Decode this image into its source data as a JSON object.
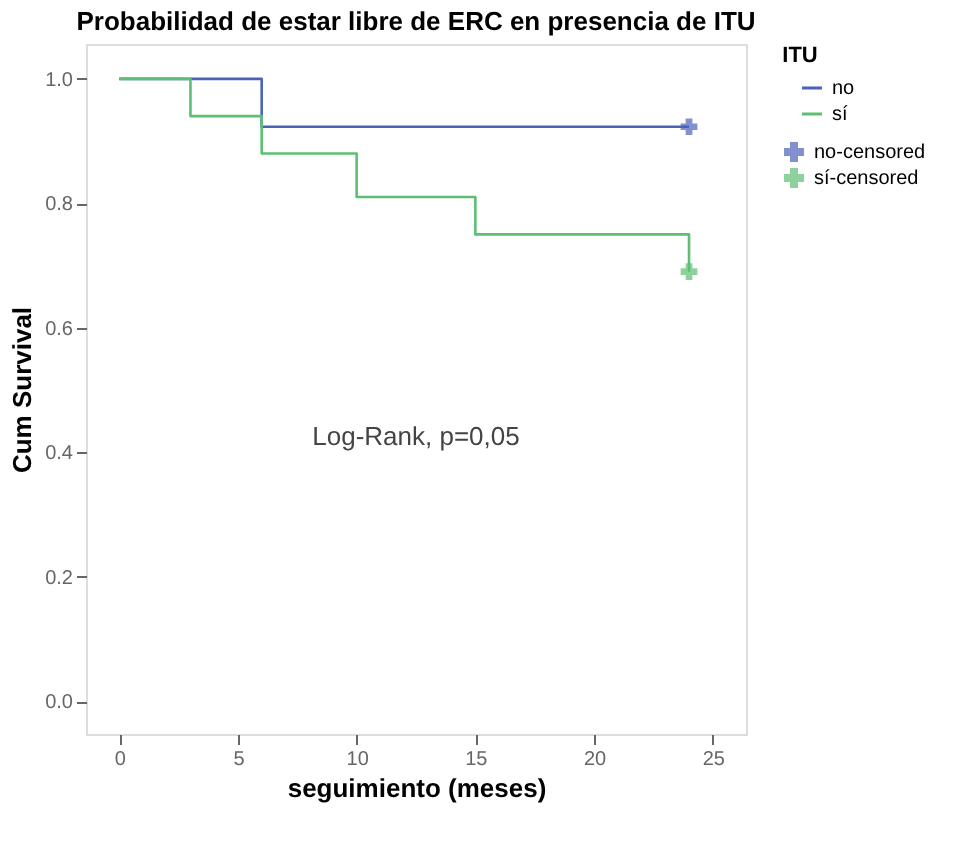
{
  "chart_data": {
    "type": "step",
    "title": "Probabilidad de estar libre de ERC en presencia de ITU",
    "xlabel": "seguimiento (meses)",
    "ylabel": "Cum Survival",
    "legend_title": "ITU",
    "legend": "top right",
    "grid": false,
    "xlim": [
      -1.4,
      26.4
    ],
    "xticks": [
      0,
      5,
      10,
      15,
      20,
      25
    ],
    "ylim": [
      -0.053,
      1.056
    ],
    "yticks": [
      {
        "value": 0,
        "label": "0.0"
      },
      {
        "value": 0.2,
        "label": "0.2"
      },
      {
        "value": 0.4,
        "label": "0.4"
      },
      {
        "value": 0.6,
        "label": "0.6"
      },
      {
        "value": 0.8,
        "label": "0.8"
      },
      {
        "value": 1,
        "label": "1.0"
      }
    ],
    "annotations": [
      "Log-Rank, p=0,05"
    ],
    "series": [
      {
        "name": "no",
        "type": "step",
        "color": "#4a63b8",
        "x": [
          0,
          6,
          24
        ],
        "values": [
          1,
          0.923,
          0.923
        ]
      },
      {
        "name": "sí",
        "type": "step",
        "color": "#5cbf72",
        "x": [
          0,
          3,
          6,
          10,
          15,
          24
        ],
        "values": [
          1,
          0.94,
          0.88,
          0.81,
          0.75,
          0.69
        ]
      },
      {
        "name": "no-censored",
        "type": "scatter",
        "marker": "cross",
        "color": "#4a63b8",
        "x": [
          24
        ],
        "values": [
          0.923
        ]
      },
      {
        "name": "sí-censored",
        "type": "scatter",
        "marker": "cross",
        "color": "#5cbf72",
        "x": [
          24
        ],
        "values": [
          0.69
        ]
      }
    ]
  }
}
